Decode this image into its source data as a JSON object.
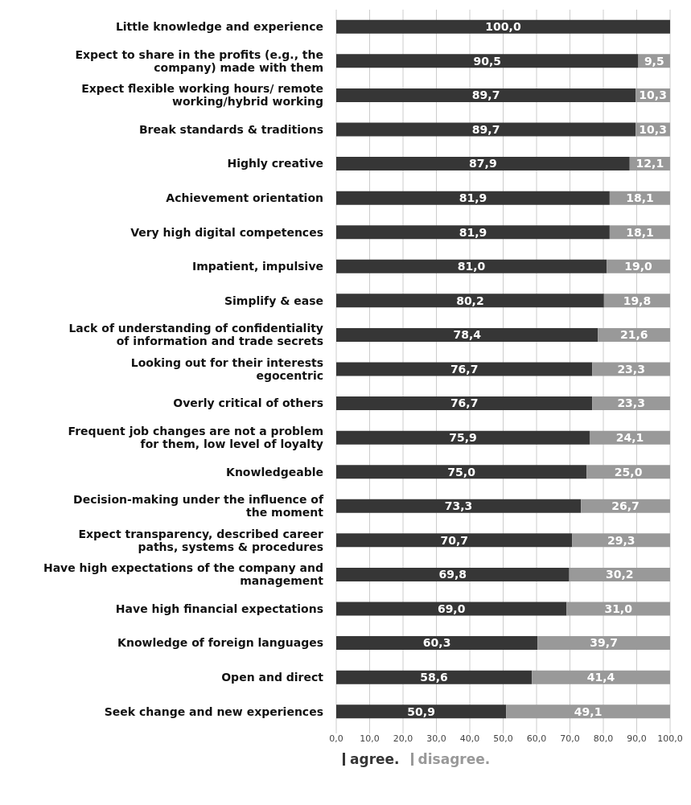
{
  "chart_data": {
    "type": "bar",
    "orientation": "horizontal",
    "stacked": true,
    "categories": [
      "Little knowledge and experience",
      "Expect to share in the profits (e.g., the company) made with them",
      "Expect flexible working hours/ remote working/hybrid working",
      "Break standards & traditions",
      "Highly creative",
      "Achievement orientation",
      "Very high digital competences",
      "Impatient, impulsive",
      "Simplify & ease",
      "Lack of understanding of confidentiality of information and trade secrets",
      "Looking out for their interests egocentric",
      "Overly critical of others",
      "Frequent job changes are not a problem for them, low level of loyalty",
      "Knowledgeable",
      "Decision-making under the influence of the moment",
      "Expect transparency, described career paths, systems & procedures",
      "Have high expectations of the company and management",
      "Have high financial expectations",
      "Knowledge of foreign languages",
      "Open and direct",
      "Seek change and new experiences"
    ],
    "series": [
      {
        "name": "agree.",
        "color": "#363636",
        "values": [
          100.0,
          90.5,
          89.7,
          89.7,
          87.9,
          81.9,
          81.9,
          81.0,
          80.2,
          78.4,
          76.7,
          76.7,
          75.9,
          75.0,
          73.3,
          70.7,
          69.8,
          69.0,
          60.3,
          58.6,
          50.9
        ],
        "value_labels": [
          "100,0",
          "90,5",
          "89,7",
          "89,7",
          "87,9",
          "81,9",
          "81,9",
          "81,0",
          "80,2",
          "78,4",
          "76,7",
          "76,7",
          "75,9",
          "75,0",
          "73,3",
          "70,7",
          "69,8",
          "69,0",
          "60,3",
          "58,6",
          "50,9"
        ]
      },
      {
        "name": "disagree.",
        "color": "#999999",
        "values": [
          0,
          9.5,
          10.3,
          10.3,
          12.1,
          18.1,
          18.1,
          19.0,
          19.8,
          21.6,
          23.3,
          23.3,
          24.1,
          25.0,
          26.7,
          29.3,
          30.2,
          31.0,
          39.7,
          41.4,
          49.1
        ],
        "value_labels": [
          null,
          "9,5",
          "10,3",
          "10,3",
          "12,1",
          "18,1",
          "18,1",
          "19,0",
          "19,8",
          "21,6",
          "23,3",
          "23,3",
          "24,1",
          "25,0",
          "26,7",
          "29,3",
          "30,2",
          "31,0",
          "39,7",
          "41,4",
          "49,1"
        ]
      }
    ],
    "xlim": [
      0,
      100
    ],
    "xticks": [
      {
        "value": 0,
        "label": "0,0"
      },
      {
        "value": 10,
        "label": "10,0"
      },
      {
        "value": 20,
        "label": "20,0"
      },
      {
        "value": 30,
        "label": "30,0"
      },
      {
        "value": 40,
        "label": "40,0"
      },
      {
        "value": 50,
        "label": "50,0"
      },
      {
        "value": 60,
        "label": "60,0"
      },
      {
        "value": 70,
        "label": "70,0"
      },
      {
        "value": 80,
        "label": "80,0"
      },
      {
        "value": 90,
        "label": "90,0"
      },
      {
        "value": 100,
        "label": "100,0"
      }
    ],
    "grid": "x",
    "legend": "bottom left"
  }
}
